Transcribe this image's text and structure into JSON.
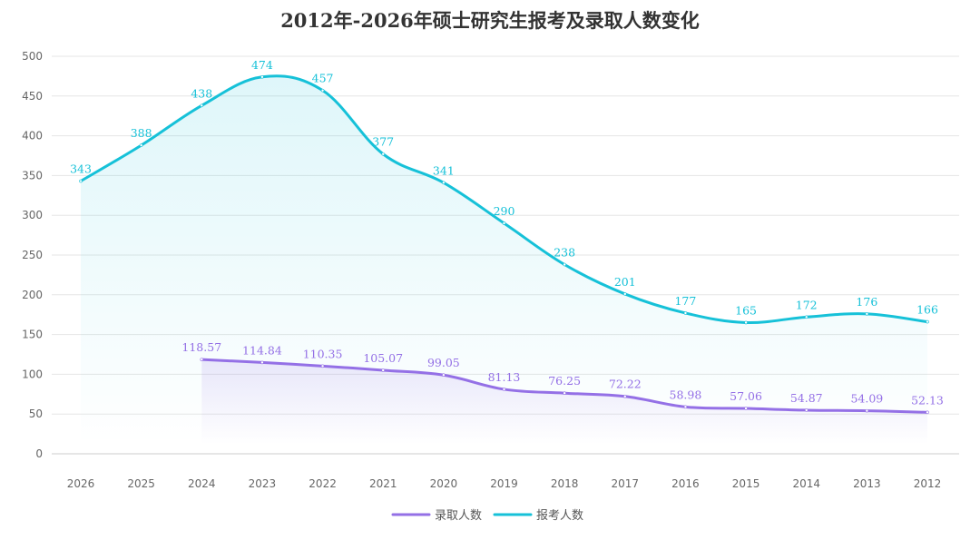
{
  "chart_data": {
    "type": "line",
    "title": "2012年-2026年硕士研究生报考及录取人数变化",
    "xlabel": "",
    "ylabel": "",
    "ylim": [
      0,
      500
    ],
    "yticks": [
      0,
      50,
      100,
      150,
      200,
      250,
      300,
      350,
      400,
      450,
      500
    ],
    "grid": true,
    "legend_position": "bottom-center",
    "categories": [
      "2026",
      "2025",
      "2024",
      "2023",
      "2022",
      "2021",
      "2020",
      "2019",
      "2018",
      "2017",
      "2016",
      "2015",
      "2014",
      "2013",
      "2012"
    ],
    "series": [
      {
        "name": "报考人数",
        "color": "#16c1d8",
        "values": [
          343,
          388,
          438,
          474,
          457,
          377,
          341,
          290,
          238,
          201,
          177,
          165,
          172,
          176,
          166
        ]
      },
      {
        "name": "录取人数",
        "color": "#9470e6",
        "values": [
          null,
          null,
          118.57,
          114.84,
          110.35,
          105.07,
          99.05,
          81.13,
          76.25,
          72.22,
          58.98,
          57.06,
          54.87,
          54.09,
          52.13
        ]
      }
    ],
    "legend_order": [
      "录取人数",
      "报考人数"
    ]
  }
}
